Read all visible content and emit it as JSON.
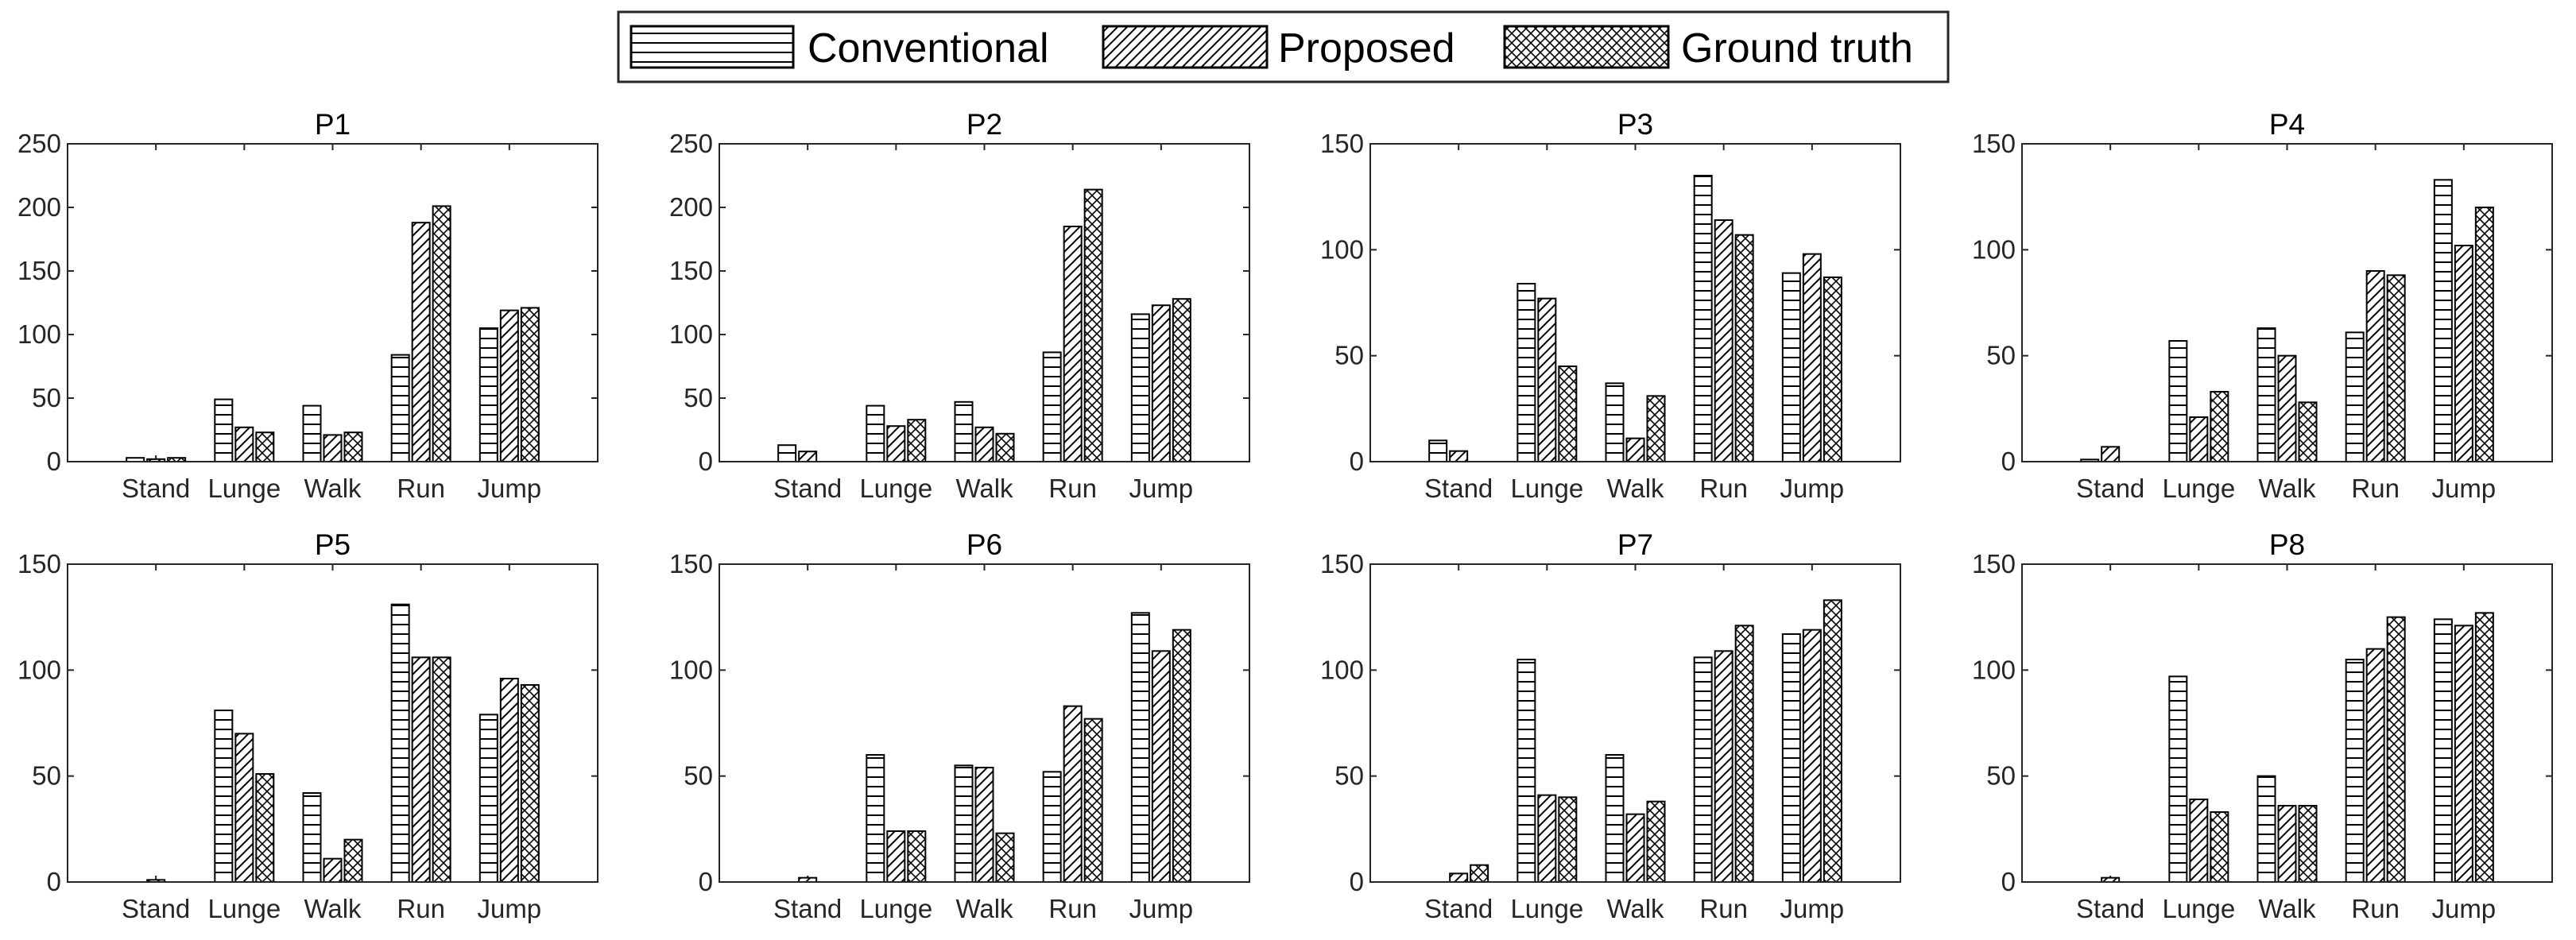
{
  "legend": {
    "entries": [
      {
        "name": "Conventional",
        "pattern": "horizontal-lines"
      },
      {
        "name": "Proposed",
        "pattern": "diagonal-hatch"
      },
      {
        "name": "Ground truth",
        "pattern": "crosshatch"
      }
    ]
  },
  "colors": {
    "axis": "#262626",
    "bar_stroke": "#000000",
    "background": "#ffffff"
  },
  "chart_data": [
    {
      "type": "bar",
      "title": "P1",
      "categories": [
        "Stand",
        "Lunge",
        "Walk",
        "Run",
        "Jump"
      ],
      "ylim": [
        0,
        250
      ],
      "yticks": [
        "0",
        "50",
        "100",
        "150",
        "200",
        "250"
      ],
      "ytick_values": [
        0,
        50,
        100,
        150,
        200,
        250
      ],
      "series": [
        {
          "name": "Conventional",
          "values": [
            3,
            49,
            44,
            84,
            105
          ]
        },
        {
          "name": "Proposed",
          "values": [
            2,
            27,
            21,
            188,
            119
          ]
        },
        {
          "name": "Ground truth",
          "values": [
            3,
            23,
            23,
            201,
            121
          ]
        }
      ]
    },
    {
      "type": "bar",
      "title": "P2",
      "categories": [
        "Stand",
        "Lunge",
        "Walk",
        "Run",
        "Jump"
      ],
      "ylim": [
        0,
        250
      ],
      "yticks": [
        "0",
        "50",
        "100",
        "150",
        "200",
        "250"
      ],
      "ytick_values": [
        0,
        50,
        100,
        150,
        200,
        250
      ],
      "series": [
        {
          "name": "Conventional",
          "values": [
            13,
            44,
            47,
            86,
            116
          ]
        },
        {
          "name": "Proposed",
          "values": [
            8,
            28,
            27,
            185,
            123
          ]
        },
        {
          "name": "Ground truth",
          "values": [
            0,
            33,
            22,
            214,
            128
          ]
        }
      ]
    },
    {
      "type": "bar",
      "title": "P3",
      "categories": [
        "Stand",
        "Lunge",
        "Walk",
        "Run",
        "Jump"
      ],
      "ylim": [
        0,
        150
      ],
      "yticks": [
        "0",
        "50",
        "100",
        "150"
      ],
      "ytick_values": [
        0,
        50,
        100,
        150
      ],
      "series": [
        {
          "name": "Conventional",
          "values": [
            10,
            84,
            37,
            135,
            89
          ]
        },
        {
          "name": "Proposed",
          "values": [
            5,
            77,
            11,
            114,
            98
          ]
        },
        {
          "name": "Ground truth",
          "values": [
            0,
            45,
            31,
            107,
            87
          ]
        }
      ]
    },
    {
      "type": "bar",
      "title": "P4",
      "categories": [
        "Stand",
        "Lunge",
        "Walk",
        "Run",
        "Jump"
      ],
      "ylim": [
        0,
        150
      ],
      "yticks": [
        "0",
        "50",
        "100",
        "150"
      ],
      "ytick_values": [
        0,
        50,
        100,
        150
      ],
      "series": [
        {
          "name": "Conventional",
          "values": [
            1,
            57,
            63,
            61,
            133
          ]
        },
        {
          "name": "Proposed",
          "values": [
            7,
            21,
            50,
            90,
            102
          ]
        },
        {
          "name": "Ground truth",
          "values": [
            0,
            33,
            28,
            88,
            120
          ]
        }
      ]
    },
    {
      "type": "bar",
      "title": "P5",
      "categories": [
        "Stand",
        "Lunge",
        "Walk",
        "Run",
        "Jump"
      ],
      "ylim": [
        0,
        150
      ],
      "yticks": [
        "0",
        "50",
        "100",
        "150"
      ],
      "ytick_values": [
        0,
        50,
        100,
        150
      ],
      "series": [
        {
          "name": "Conventional",
          "values": [
            0,
            81,
            42,
            131,
            79
          ]
        },
        {
          "name": "Proposed",
          "values": [
            1,
            70,
            11,
            106,
            96
          ]
        },
        {
          "name": "Ground truth",
          "values": [
            0,
            51,
            20,
            106,
            93
          ]
        }
      ]
    },
    {
      "type": "bar",
      "title": "P6",
      "categories": [
        "Stand",
        "Lunge",
        "Walk",
        "Run",
        "Jump"
      ],
      "ylim": [
        0,
        150
      ],
      "yticks": [
        "0",
        "50",
        "100",
        "150"
      ],
      "ytick_values": [
        0,
        50,
        100,
        150
      ],
      "series": [
        {
          "name": "Conventional",
          "values": [
            0,
            60,
            55,
            52,
            127
          ]
        },
        {
          "name": "Proposed",
          "values": [
            2,
            24,
            54,
            83,
            109
          ]
        },
        {
          "name": "Ground truth",
          "values": [
            0,
            24,
            23,
            77,
            119
          ]
        }
      ]
    },
    {
      "type": "bar",
      "title": "P7",
      "categories": [
        "Stand",
        "Lunge",
        "Walk",
        "Run",
        "Jump"
      ],
      "ylim": [
        0,
        150
      ],
      "yticks": [
        "0",
        "50",
        "100",
        "150"
      ],
      "ytick_values": [
        0,
        50,
        100,
        150
      ],
      "series": [
        {
          "name": "Conventional",
          "values": [
            0,
            105,
            60,
            106,
            117
          ]
        },
        {
          "name": "Proposed",
          "values": [
            4,
            41,
            32,
            109,
            119
          ]
        },
        {
          "name": "Ground truth",
          "values": [
            8,
            40,
            38,
            121,
            133
          ]
        }
      ]
    },
    {
      "type": "bar",
      "title": "P8",
      "categories": [
        "Stand",
        "Lunge",
        "Walk",
        "Run",
        "Jump"
      ],
      "ylim": [
        0,
        150
      ],
      "yticks": [
        "0",
        "50",
        "100",
        "150"
      ],
      "ytick_values": [
        0,
        50,
        100,
        150
      ],
      "series": [
        {
          "name": "Conventional",
          "values": [
            0,
            97,
            50,
            105,
            124
          ]
        },
        {
          "name": "Proposed",
          "values": [
            2,
            39,
            36,
            110,
            121
          ]
        },
        {
          "name": "Ground truth",
          "values": [
            0,
            33,
            36,
            125,
            127
          ]
        }
      ]
    }
  ]
}
